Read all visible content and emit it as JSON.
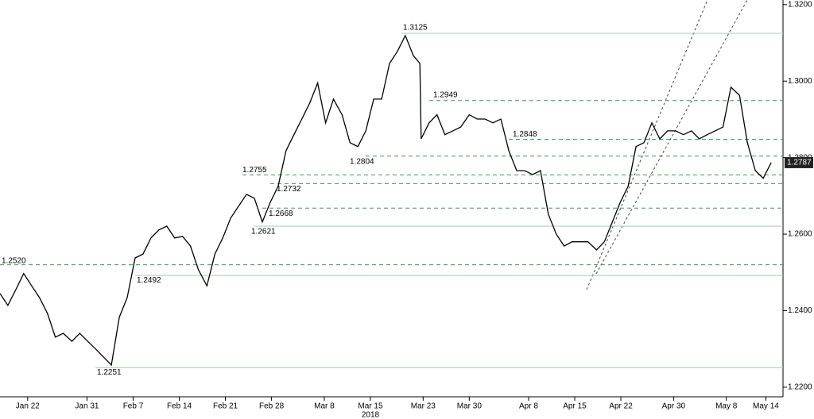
{
  "chart_data": {
    "type": "line",
    "x_sublabel": "2018",
    "x": [
      17.8,
      19.0,
      20.2,
      21.4,
      22.6,
      23.8,
      25.0,
      26.2,
      27.4,
      28.7,
      29.9,
      31.1,
      32.3,
      33.5,
      34.7,
      35.9,
      37.1,
      38.3,
      39.5,
      40.7,
      41.9,
      43.1,
      44.3,
      45.5,
      46.7,
      47.9,
      49.2,
      50.4,
      51.6,
      52.8,
      54.0,
      55.2,
      56.4,
      57.6,
      58.8,
      60.0,
      61.2,
      62.4,
      63.6,
      64.8,
      66.0,
      67.2,
      68.4,
      69.7,
      70.9,
      72.1,
      73.3,
      74.5,
      75.7,
      76.9,
      78.1,
      79.3,
      80.5,
      81.5,
      81.7,
      82.9,
      84.1,
      85.3,
      86.5,
      87.7,
      89.0,
      90.2,
      91.4,
      92.6,
      93.8,
      95.0,
      96.2,
      97.4,
      98.6,
      99.8,
      101.0,
      102.2,
      103.4,
      104.6,
      105.8,
      107.0,
      108.3,
      109.5,
      110.7,
      111.9,
      113.1,
      114.3,
      115.5,
      116.7,
      117.9,
      119.1,
      120.3,
      121.5,
      122.7,
      123.9,
      125.1,
      126.3,
      127.5,
      128.7,
      130.0,
      131.2,
      132.4,
      133.6,
      134.8
    ],
    "series": [
      {
        "color": "#000000",
        "values": [
          1.2445,
          1.2414,
          1.2455,
          1.2497,
          1.2465,
          1.2434,
          1.2393,
          1.2331,
          1.2341,
          1.232,
          1.2341,
          1.232,
          1.23,
          1.2279,
          1.2258,
          1.2383,
          1.2434,
          1.2538,
          1.2548,
          1.259,
          1.2611,
          1.2621,
          1.259,
          1.2594,
          1.2569,
          1.2507,
          1.2465,
          1.2548,
          1.259,
          1.2642,
          1.2673,
          1.2704,
          1.2694,
          1.2632,
          1.2683,
          1.2725,
          1.2818,
          1.286,
          1.2901,
          1.2943,
          1.2995,
          1.2891,
          1.2953,
          1.2912,
          1.2839,
          1.2829,
          1.287,
          1.2953,
          1.2953,
          1.3046,
          1.3078,
          1.3119,
          1.3067,
          1.3046,
          1.2849,
          1.2891,
          1.2912,
          1.286,
          1.287,
          1.288,
          1.2912,
          1.2901,
          1.2901,
          1.2891,
          1.2901,
          1.2818,
          1.2766,
          1.2766,
          1.2756,
          1.2766,
          1.2652,
          1.26,
          1.2569,
          1.258,
          1.258,
          1.258,
          1.2559,
          1.258,
          1.2632,
          1.2683,
          1.2725,
          1.2829,
          1.2839,
          1.2891,
          1.2849,
          1.287,
          1.287,
          1.286,
          1.287,
          1.2849,
          1.286,
          1.287,
          1.288,
          1.2984,
          1.2963,
          1.2839,
          1.2766,
          1.2746,
          1.2787
        ]
      }
    ],
    "last_value": 1.2787,
    "last_value_label": "1.2787",
    "levels": {
      "values": [
        1.3125,
        1.2949,
        1.2848,
        1.2804,
        1.2755,
        1.2732,
        1.2668,
        1.2621,
        1.252,
        1.2492,
        1.2251
      ],
      "value_labels": [
        "1.3125",
        "1.2949",
        "1.2848",
        "1.2804",
        "1.2755",
        "1.2732",
        "1.2668",
        "1.2621",
        "1.2520",
        "1.2492",
        "1.2251"
      ],
      "styles": [
        "solid",
        "dashed",
        "dashed",
        "dashed",
        "dashed",
        "dashed",
        "dashed",
        "solid",
        "dashed",
        "solid",
        "solid"
      ],
      "solid_color": "#9fd3a9",
      "dashed_color": "#3a9a5a"
    },
    "xlim": [
      17.8,
      136.6
    ],
    "ylim": [
      1.2175,
      1.3212
    ],
    "xticks": [
      {
        "value": 22,
        "label": "Jan 22"
      },
      {
        "value": 31,
        "label": "Jan 31"
      },
      {
        "value": 38,
        "label": "Feb 7"
      },
      {
        "value": 45,
        "label": "Feb 14"
      },
      {
        "value": 52,
        "label": "Feb 21"
      },
      {
        "value": 59,
        "label": "Feb 28"
      },
      {
        "value": 67,
        "label": "Mar 8"
      },
      {
        "value": 74,
        "label": "Mar 15"
      },
      {
        "value": 82,
        "label": "Mar 23"
      },
      {
        "value": 89,
        "label": "Mar 30"
      },
      {
        "value": 98,
        "label": "Apr 8"
      },
      {
        "value": 105,
        "label": "Apr 15"
      },
      {
        "value": 112,
        "label": "Apr 22"
      },
      {
        "value": 120,
        "label": "Apr 30"
      },
      {
        "value": 128,
        "label": "May 8"
      },
      {
        "value": 134,
        "label": "May 14"
      }
    ],
    "yticks": [
      {
        "value": 1.22,
        "label": "1.2200"
      },
      {
        "value": 1.24,
        "label": "1.2400"
      },
      {
        "value": 1.26,
        "label": "1.2600"
      },
      {
        "value": 1.28,
        "label": "1.2800"
      },
      {
        "value": 1.3,
        "label": "1.3000"
      },
      {
        "value": 1.32,
        "label": "1.3200"
      }
    ]
  }
}
